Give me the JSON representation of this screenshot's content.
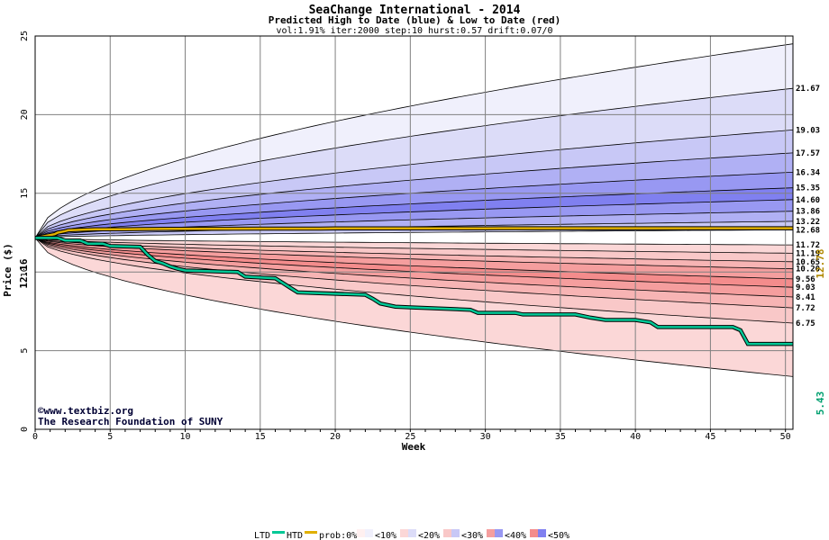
{
  "chart_data": {
    "type": "area",
    "title": "SeaChange International - 2014",
    "subtitle": "Predicted High to Date (blue) &  Low to Date (red)",
    "params": "vol:1.91% iter:2000 step:10 hurst:0.57 drift:0.07/0",
    "xlabel": "Week",
    "ylabel": "Price ($)",
    "xlim": [
      0,
      50.5
    ],
    "ylim": [
      0,
      25
    ],
    "x_ticks": [
      "0",
      "5",
      "10",
      "15",
      "20",
      "25",
      "30",
      "35",
      "40",
      "45",
      "50"
    ],
    "y_ticks": [
      "0",
      "5",
      "10",
      "15",
      "20",
      "25"
    ],
    "start_price": "12.16",
    "last_price": "12.78",
    "last_low": "5.43",
    "grid": true,
    "high_quantiles": [
      "21.67",
      "19.03",
      "17.57",
      "16.34",
      "15.35",
      "14.60",
      "13.86",
      "13.22",
      "12.68"
    ],
    "low_quantiles": [
      "11.72",
      "11.19",
      "10.65",
      "10.20",
      "9.56",
      "9.03",
      "8.41",
      "7.72",
      "6.75"
    ],
    "high_fan_end": [
      24.5,
      21.67,
      19.03,
      17.57,
      16.34,
      15.35,
      14.6,
      13.86,
      13.22,
      12.68
    ],
    "low_fan_end": [
      11.72,
      11.19,
      10.65,
      10.2,
      9.56,
      9.03,
      8.41,
      7.72,
      6.75,
      3.35
    ],
    "fan_colors_high": [
      "#f0f0fc",
      "#dcdcf8",
      "#c8c8f6",
      "#b0b0f4",
      "#9898f2",
      "#8080f0",
      "#9898f2",
      "#b0b0f4",
      "#c8c8f6",
      "#dcdcf8"
    ],
    "fan_colors_low": [
      "#fbd7d7",
      "#f9c8c8",
      "#f7b4b4",
      "#f59e9e",
      "#f48c8c",
      "#f59e9e",
      "#f7b4b4",
      "#f9c8c8",
      "#fbd7d7",
      "#fff0f0"
    ],
    "htd_series": {
      "x": [
        0,
        1.3,
        1.5,
        2.0,
        2.2,
        3.5,
        4.0,
        6.0,
        7.0,
        9.0,
        10.0,
        12.0,
        13.0,
        15.0,
        16.0,
        19.0,
        20.0,
        23.0,
        24.0,
        30.0,
        31.0,
        40.0,
        41.0,
        47.0,
        48.0,
        50.5
      ],
      "values": [
        12.16,
        12.4,
        12.5,
        12.6,
        12.65,
        12.7,
        12.72,
        12.72,
        12.73,
        12.74,
        12.74,
        12.75,
        12.75,
        12.76,
        12.76,
        12.76,
        12.77,
        12.77,
        12.77,
        12.77,
        12.78,
        12.78,
        12.78,
        12.78,
        12.78,
        12.78
      ]
    },
    "ltd_series": {
      "x": [
        0,
        1.5,
        2.0,
        3.0,
        3.5,
        4.5,
        5.0,
        7.0,
        7.5,
        8.0,
        8.5,
        9.0,
        9.5,
        10.0,
        13.5,
        14.0,
        16.0,
        16.5,
        17.0,
        17.5,
        22.0,
        22.5,
        23.0,
        24.0,
        25.0,
        29.0,
        29.5,
        32.0,
        32.5,
        36.0,
        37.0,
        38.0,
        40.0,
        41.0,
        41.5,
        46.5,
        47.0,
        47.5,
        50.5
      ],
      "values": [
        12.16,
        12.16,
        12.0,
        12.0,
        11.8,
        11.8,
        11.65,
        11.6,
        11.1,
        10.7,
        10.55,
        10.35,
        10.2,
        10.1,
        10.0,
        9.7,
        9.6,
        9.3,
        9.0,
        8.7,
        8.55,
        8.3,
        8.0,
        7.8,
        7.75,
        7.6,
        7.4,
        7.4,
        7.3,
        7.3,
        7.1,
        6.95,
        6.95,
        6.8,
        6.5,
        6.5,
        6.3,
        5.43,
        5.43
      ]
    },
    "legend": {
      "ltd": "LTD",
      "htd": "HTD",
      "prob": "prob:0%",
      "bands": [
        "<10%",
        "<20%",
        "<30%",
        "<40%",
        "<50%"
      ],
      "band_colors": [
        "#fff0f0",
        "#f0f0fc",
        "#fbd7d7",
        "#dcdcf8",
        "#f9c8c8",
        "#c8c8f6",
        "#f59e9e",
        "#9898f2",
        "#f48c8c",
        "#8080f0"
      ],
      "ltd_color": "#00c896",
      "htd_color": "#e0b000"
    },
    "credits": [
      "©www.textbiz.org",
      "The Research Foundation of SUNY"
    ]
  }
}
